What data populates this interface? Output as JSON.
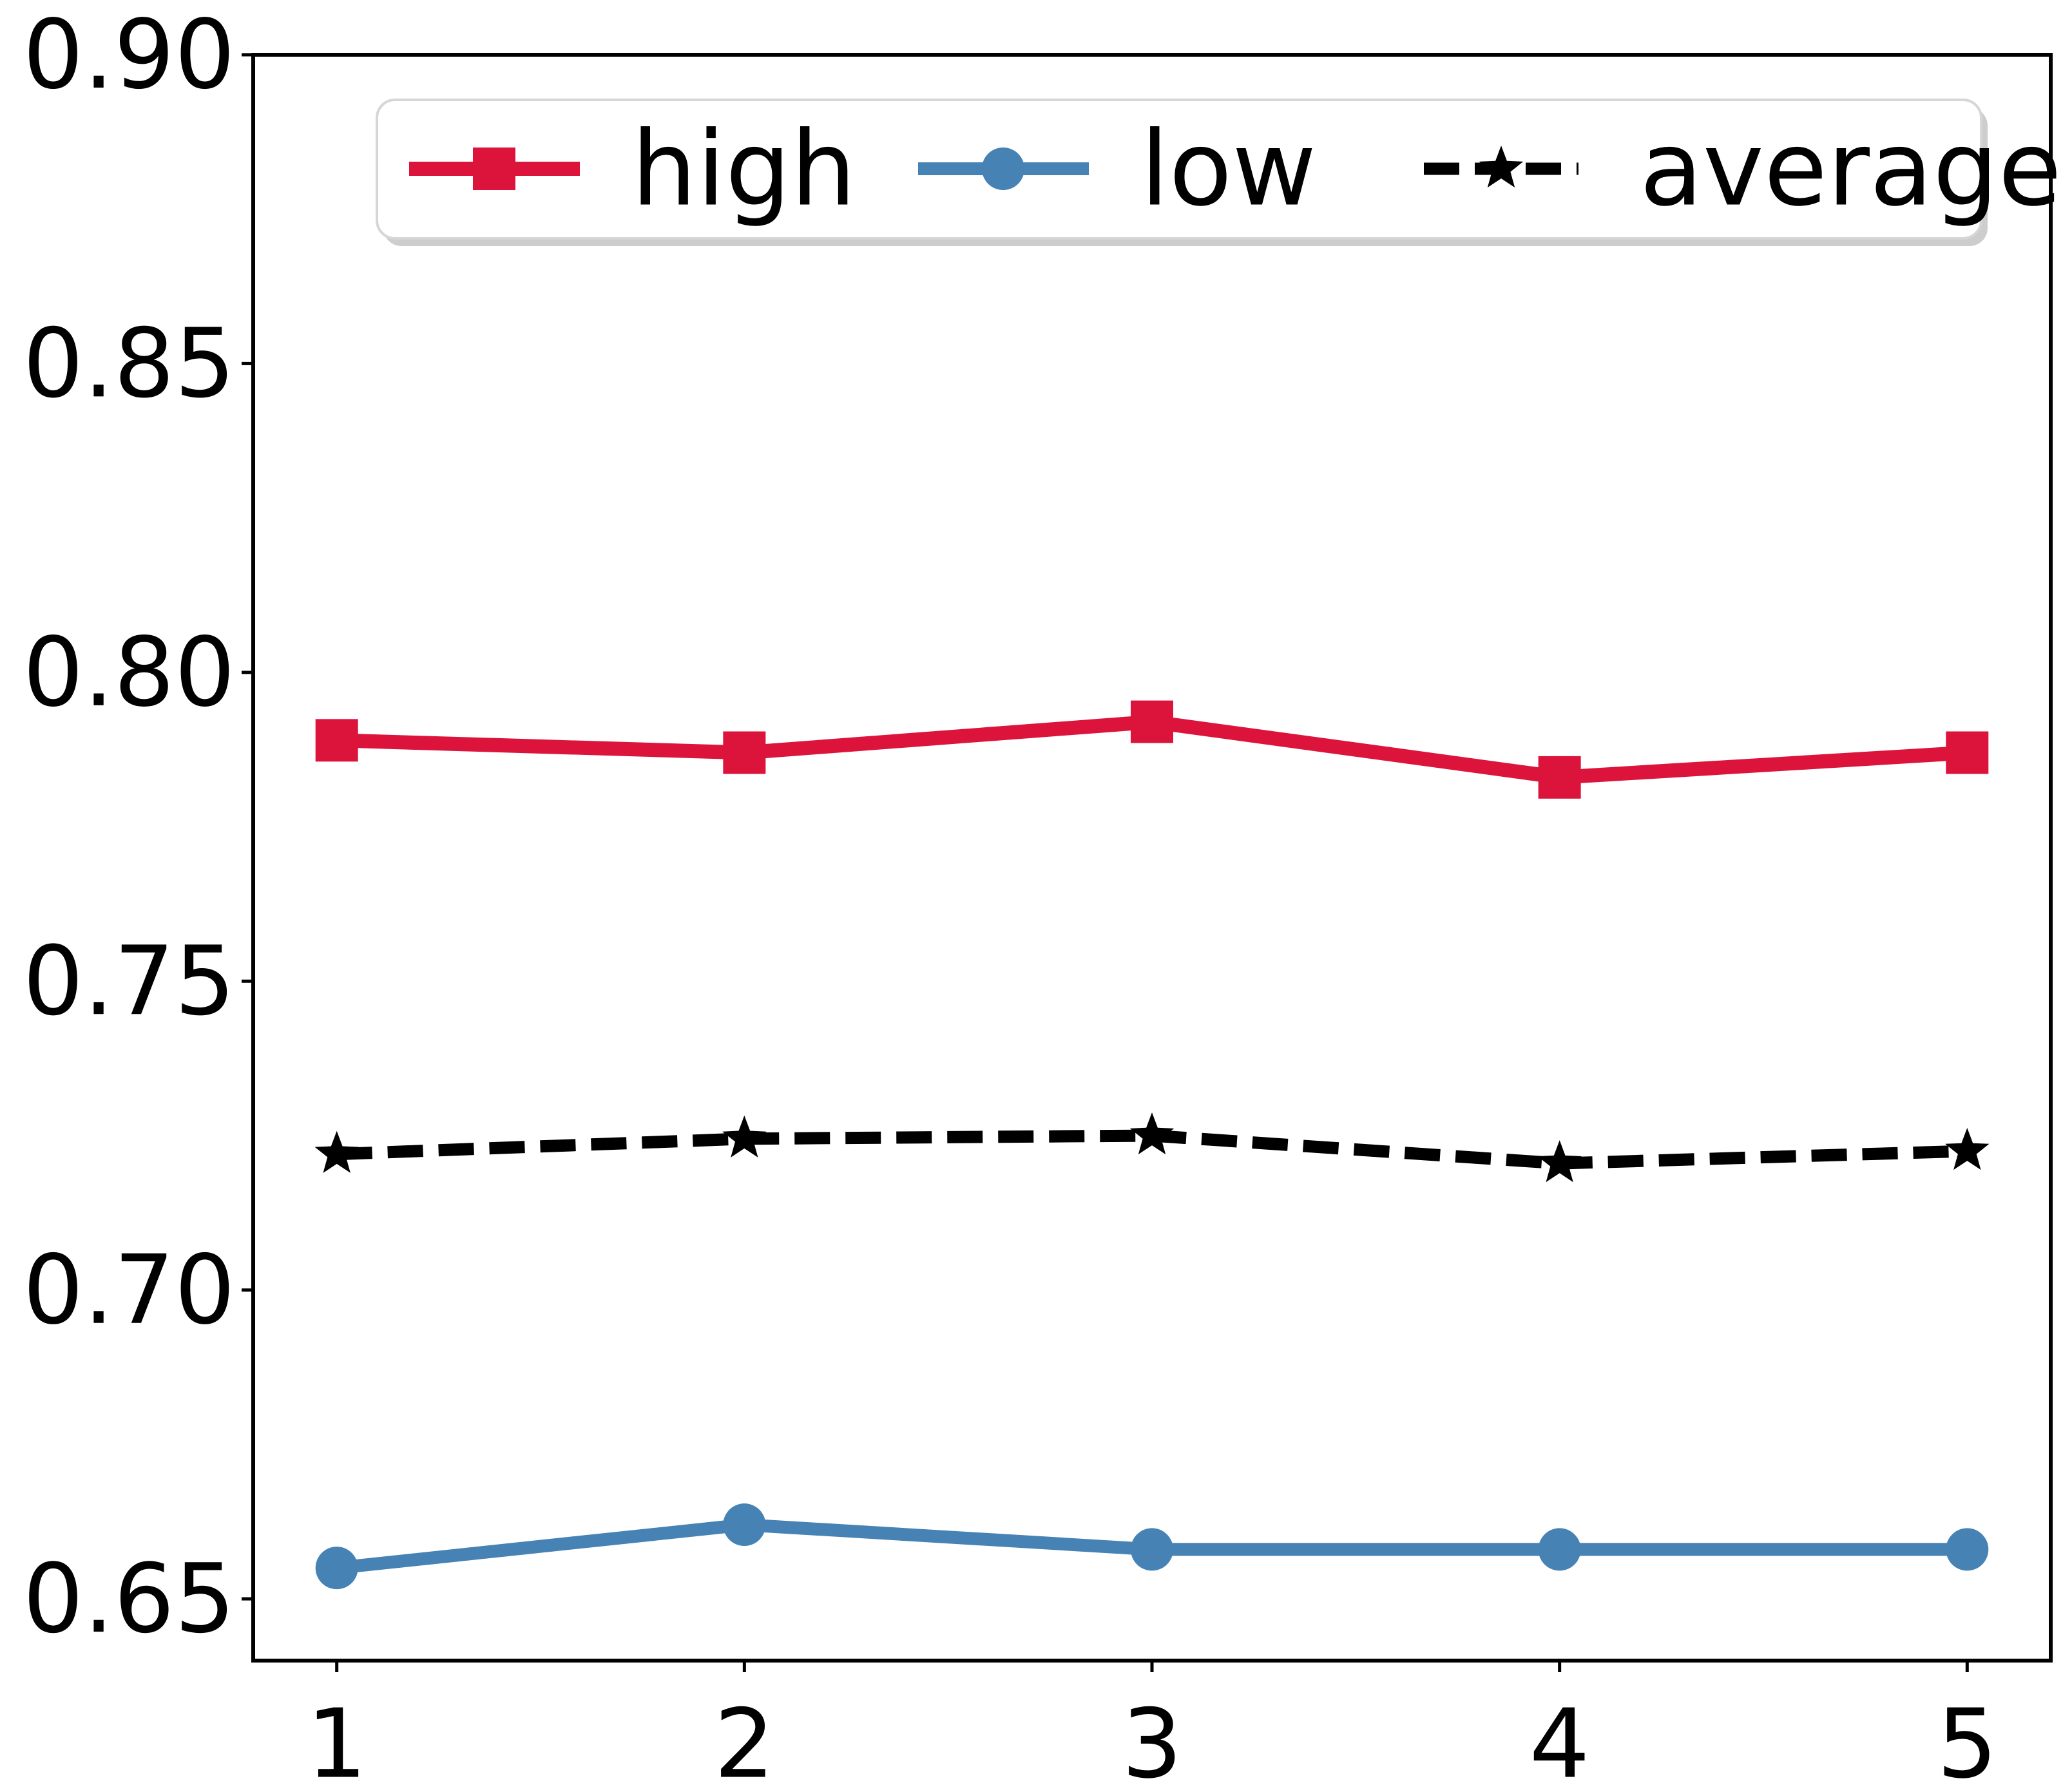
{
  "chart_data": {
    "type": "line",
    "x": [
      1,
      2,
      3,
      4,
      5
    ],
    "x_tick_labels": [
      "1",
      "2",
      "3",
      "4",
      "5"
    ],
    "y_tick_labels": [
      "0.90",
      "0.85",
      "0.80",
      "0.75",
      "0.70",
      "0.65"
    ],
    "y_tick_values": [
      0.9,
      0.85,
      0.8,
      0.75,
      0.7,
      0.65
    ],
    "xlim": [
      0.795,
      5.205
    ],
    "ylim": [
      0.64,
      0.9
    ],
    "grid": false,
    "title": "",
    "xlabel": "",
    "ylabel": "",
    "series": [
      {
        "name": "high",
        "color": "#DC143C",
        "marker": "square",
        "linestyle": "solid",
        "values": [
          0.789,
          0.787,
          0.792,
          0.783,
          0.787
        ]
      },
      {
        "name": "low",
        "color": "#4682B4",
        "marker": "circle",
        "linestyle": "solid",
        "values": [
          0.655,
          0.662,
          0.658,
          0.658,
          0.658
        ]
      },
      {
        "name": "average",
        "color": "#000000",
        "marker": "star",
        "linestyle": "dashed",
        "values": [
          0.722,
          0.7245,
          0.725,
          0.7205,
          0.7225
        ]
      }
    ],
    "legend": {
      "position": "upper center",
      "labels": [
        "high",
        "low",
        "average"
      ]
    },
    "frame_color": "#000000",
    "background_color": "#ffffff"
  }
}
